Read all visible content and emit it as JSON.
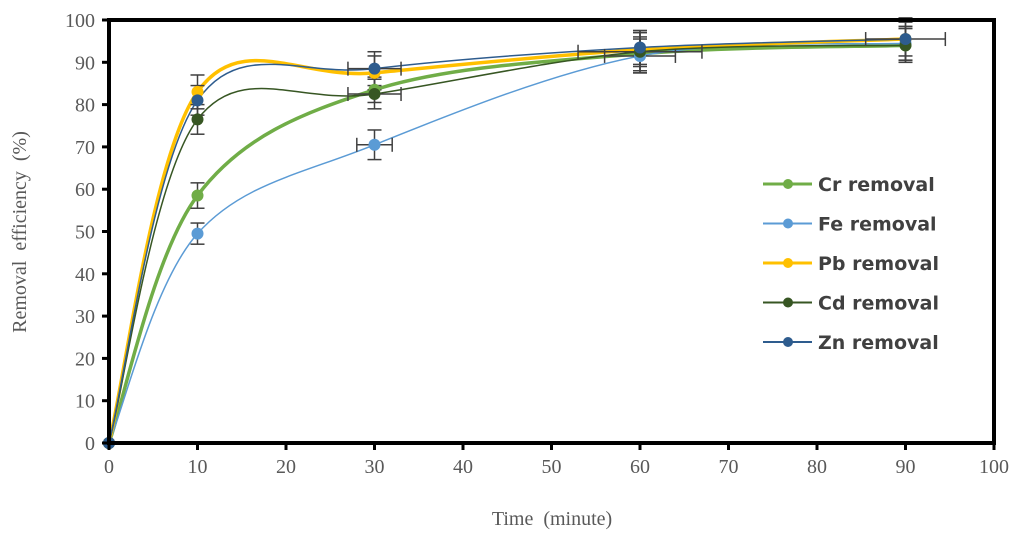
{
  "chart_data": {
    "type": "line",
    "title": "",
    "xlabel": "Time  (minute)",
    "ylabel": "Removal  efficiency  (%)",
    "xlim": [
      0,
      100
    ],
    "ylim": [
      0,
      100
    ],
    "x_ticks": [
      0,
      10,
      20,
      30,
      40,
      50,
      60,
      70,
      80,
      90,
      100
    ],
    "y_ticks": [
      0,
      10,
      20,
      30,
      40,
      50,
      60,
      70,
      80,
      90,
      100
    ],
    "grid": false,
    "smoothed": true,
    "legend_position": "right-center",
    "x": [
      0,
      10,
      30,
      60,
      90
    ],
    "series": [
      {
        "name": "Cr removal",
        "color": "#70ad47",
        "width": 3.5,
        "values": [
          0,
          58.5,
          83.5,
          92,
          94
        ],
        "y_err": [
          0,
          3,
          3,
          4,
          4
        ],
        "x_err": [
          0,
          0,
          0,
          0,
          0
        ]
      },
      {
        "name": "Fe removal",
        "color": "#5b9bd5",
        "width": 1.5,
        "values": [
          0,
          49.5,
          70.5,
          91.5,
          94.5
        ],
        "y_err": [
          0,
          2.5,
          3.5,
          4,
          4
        ],
        "x_err": [
          0,
          0,
          2,
          4,
          0
        ]
      },
      {
        "name": "Pb removal",
        "color": "#ffc000",
        "width": 3.5,
        "values": [
          0,
          83,
          87.5,
          93,
          95.5
        ],
        "y_err": [
          0,
          4,
          4,
          4,
          4
        ],
        "x_err": [
          0,
          0,
          0,
          0,
          0
        ]
      },
      {
        "name": "Cd removal",
        "color": "#375623",
        "width": 1.5,
        "values": [
          0,
          76.5,
          82.5,
          92.5,
          94
        ],
        "y_err": [
          0,
          3.5,
          3.5,
          5,
          4
        ],
        "x_err": [
          0,
          0,
          3,
          7,
          0
        ]
      },
      {
        "name": "Zn removal",
        "color": "#2e5c8e",
        "width": 1.5,
        "values": [
          0,
          81,
          88.5,
          93.5,
          95.5
        ],
        "y_err": [
          0,
          3.5,
          4,
          4,
          5
        ],
        "x_err": [
          0,
          0,
          3,
          0,
          4.5
        ]
      }
    ],
    "errorbar_color": "#404040"
  }
}
